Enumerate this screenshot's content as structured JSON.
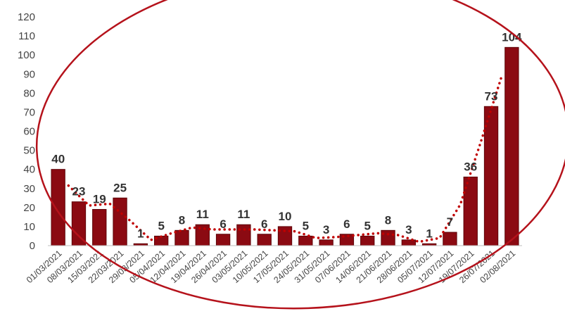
{
  "chart_data": {
    "type": "bar",
    "categories": [
      "01/03/2021",
      "08/03/2021",
      "15/03/2021",
      "22/03/2021",
      "29/03/2021",
      "05/04/2021",
      "12/04/2021",
      "19/04/2021",
      "26/04/2021",
      "03/05/2021",
      "10/05/2021",
      "17/05/2021",
      "24/05/2021",
      "31/05/2021",
      "07/06/2021",
      "14/06/2021",
      "21/06/2021",
      "28/06/2021",
      "05/07/2021",
      "12/07/2021",
      "19/07/2021",
      "26/07/2021",
      "02/08/2021"
    ],
    "values": [
      40,
      23,
      19,
      25,
      1,
      5,
      8,
      11,
      6,
      11,
      6,
      10,
      5,
      3,
      6,
      5,
      8,
      3,
      1,
      7,
      36,
      73,
      104
    ],
    "trendline_values": [
      31.5,
      21,
      22,
      13,
      3,
      6.5,
      9.5,
      8.5,
      8.5,
      8.5,
      8,
      7.5,
      4,
      4.5,
      5.5,
      6.5,
      5.5,
      2,
      4,
      21.5,
      54.5,
      88.5
    ],
    "yticks": [
      0,
      10,
      20,
      30,
      40,
      50,
      60,
      70,
      80,
      90,
      100,
      110,
      120
    ],
    "ylim": [
      0,
      120
    ],
    "title": "",
    "xlabel": "",
    "ylabel": "",
    "grid": false,
    "legend": "none",
    "colors": {
      "bar": "#8b0a12",
      "bar_edge": "#5e0509",
      "trendline": "#c00000",
      "ellipse": "#b5121b",
      "axis": "#bfbfbf"
    }
  }
}
